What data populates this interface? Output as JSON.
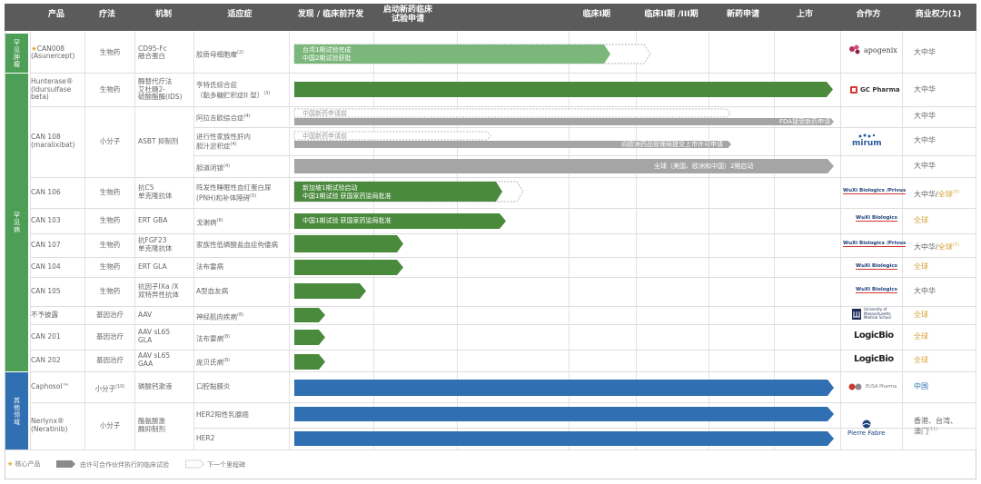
{
  "header": {
    "product": "产品",
    "therapy": "疗法",
    "mechanism": "机制",
    "indication": "适应症",
    "discovery": "发现 / 临床前开发",
    "ind": "启动新药临床\n试验申请",
    "phase1": "临床I期",
    "phase23": "临床II期 /III期",
    "nda": "新药申请",
    "market": "上市",
    "partner": "合作方",
    "rights": "商业权力(1)"
  },
  "groups": [
    {
      "label": "罕见肿瘤",
      "color": "#4d9e56"
    },
    {
      "label": "罕见病",
      "color": "#4d9e56"
    },
    {
      "label": "其他领域",
      "color": "#2f6fb2"
    }
  ],
  "rows": [
    {
      "product": "CAN008\n(Asunercept)",
      "star": "★",
      "therapy": "生物药",
      "mechanism": "CD95-Fc\n融合蛋白",
      "indication": "胶质母细胞瘤",
      "ind_sup": "(2)",
      "bar_texts": [
        "台湾1期试验完成",
        "中国2期试验获批"
      ],
      "partner": "apogenix",
      "rights": "大中华",
      "rights2": "",
      "rights2_sup": ""
    },
    {
      "product": "Hunterase®\n(Idursulfase\nbeta)",
      "star": "",
      "therapy": "生物药",
      "mechanism": "酶替代疗法\n艾杜糖2-\n硫酸酯酶(IDS)",
      "indication": "亨特氏综合症\n（黏多糖贮积症II 型）",
      "ind_sup": "(3)",
      "bar_texts": [],
      "partner": "GC Pharma",
      "rights": "大中华",
      "rights2": "",
      "rights2_sup": ""
    },
    {
      "product": "CAN 108\n(maralixibat)",
      "star": "",
      "therapy": "小分子",
      "mechanism": "ASBT 抑制剂",
      "indication": "阿拉吉欧综合症",
      "ind_sup": "(4)",
      "bar_texts": [
        "中国新药申请前",
        "FDA接受新药申请"
      ],
      "partner": "mirum",
      "rights": "大中华",
      "rights2": "",
      "rights2_sup": ""
    },
    {
      "product": "",
      "star": "",
      "therapy": "",
      "mechanism": "",
      "indication": "进行性家族性肝内\n胆汁淤积症",
      "ind_sup": "(4)",
      "bar_texts": [
        "中国新药申请前",
        "向欧洲药品管理局提交上市许可申请"
      ],
      "partner": "",
      "rights": "大中华",
      "rights2": "",
      "rights2_sup": ""
    },
    {
      "product": "",
      "star": "",
      "therapy": "",
      "mechanism": "",
      "indication": "胆道闭锁",
      "ind_sup": "(4)",
      "bar_texts": [
        "全球（美国、欧洲和中国）2期启动"
      ],
      "partner": "",
      "rights": "大中华",
      "rights2": "",
      "rights2_sup": ""
    },
    {
      "product": "CAN 106",
      "star": "",
      "therapy": "生物药",
      "mechanism": "抗C5\n单克隆抗体",
      "indication": "阵发性睡眠性血红蛋白尿\n(PNH)和补体障碍",
      "ind_sup": "(5)",
      "bar_texts": [
        "新加坡1期试验启动",
        "中国1期试验 获国家药监局批准"
      ],
      "partner": "WuXi Biologics /Privus",
      "rights": "大中华/",
      "rights2": "全球",
      "rights2_sup": "(7)"
    },
    {
      "product": "CAN 103",
      "star": "",
      "therapy": "生物药",
      "mechanism": "ERT GBA",
      "indication": "戈谢病",
      "ind_sup": "(6)",
      "bar_texts": [
        "中国1期试验 获国家药监局批准"
      ],
      "partner": "WuXi Biologics",
      "rights": "",
      "rights2": "全球",
      "rights2_sup": ""
    },
    {
      "product": "CAN 107",
      "star": "",
      "therapy": "生物药",
      "mechanism": "抗FGF23\n单克隆抗体",
      "indication": "家族性低磷酸盐血症佝偻病",
      "ind_sup": "",
      "bar_texts": [],
      "partner": "WuXi Biologics /Privus",
      "rights": "大中华/",
      "rights2": "全球",
      "rights2_sup": "(7)"
    },
    {
      "product": "CAN 104",
      "star": "",
      "therapy": "生物药",
      "mechanism": "ERT GLA",
      "indication": "法布雷病",
      "ind_sup": "",
      "bar_texts": [],
      "partner": "WuXi Biologics",
      "rights": "",
      "rights2": "全球",
      "rights2_sup": ""
    },
    {
      "product": "CAN 105",
      "star": "",
      "therapy": "生物药",
      "mechanism": "抗因子IXa /X\n双特异性抗体",
      "indication": "A型血友病",
      "ind_sup": "",
      "bar_texts": [],
      "partner": "WuXi Biologics",
      "rights": "大中华",
      "rights2": "",
      "rights2_sup": ""
    },
    {
      "product": "不予披露",
      "star": "",
      "therapy": "基因治疗",
      "mechanism": "AAV",
      "indication": "神经肌肉疾病",
      "ind_sup": "(8)",
      "bar_texts": [],
      "partner": "University of Massachusetts Medical School",
      "rights": "",
      "rights2": "全球",
      "rights2_sup": ""
    },
    {
      "product": "CAN 201",
      "star": "",
      "therapy": "基因治疗",
      "mechanism": "AAV sL65\nGLA",
      "indication": "法布雷病",
      "ind_sup": "(8)",
      "bar_texts": [],
      "partner": "LogicBio",
      "rights": "",
      "rights2": "全球",
      "rights2_sup": ""
    },
    {
      "product": "CAN 202",
      "star": "",
      "therapy": "基因治疗",
      "mechanism": "AAV sL65\nGAA",
      "indication": "庞贝氏病",
      "ind_sup": "(8)",
      "bar_texts": [],
      "partner": "LogicBio",
      "rights": "",
      "rights2": "全球",
      "rights2_sup": ""
    },
    {
      "product": "Caphosol™",
      "star": "",
      "therapy": "小分子",
      "therapy_sup": "(10)",
      "mechanism": "磷酸钙漱液",
      "indication": "口腔黏膜炎",
      "ind_sup": "",
      "bar_texts": [],
      "partner": "EUSA Pharma",
      "rights": "中国",
      "rights2": "",
      "rights2_sup": ""
    },
    {
      "product": "Nerlynx®\n(Neratinib)",
      "star": "",
      "therapy": "小分子",
      "mechanism": "酪氨酸激\n酶抑制剂",
      "indication": "HER2阳性乳腺癌",
      "ind_sup": "",
      "bar_texts": [],
      "partner": "Pierre Fabre",
      "rights": "香港、台湾、\n澳门",
      "rights2": "",
      "rights2_sup": "(11)"
    },
    {
      "product": "",
      "star": "",
      "therapy": "",
      "mechanism": "",
      "indication": "HER2",
      "ind_sup": "",
      "bar_texts": [],
      "partner": "",
      "rights": "",
      "rights2": "",
      "rights2_sup": ""
    }
  ],
  "legend": {
    "core": "核心产品",
    "licensed": "由许可合作伙伴执行的临床试验",
    "milestone": "下一个里程碑"
  },
  "colors": {
    "header_bg": "#5b5b5b",
    "green": "#4a8a3c",
    "light_green": "#7bb67a",
    "gray": "#a5a5a5",
    "blue": "#2f6fb2",
    "gold": "#d4a53c"
  }
}
